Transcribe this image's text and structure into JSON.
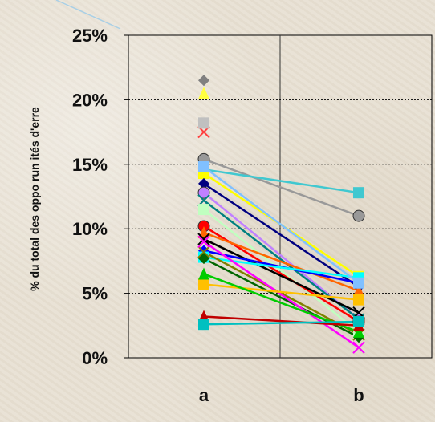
{
  "chart_data": {
    "type": "line",
    "title": "",
    "xlabel": "",
    "ylabel": "% du total des oppo run ités d'erre",
    "categories": [
      "a",
      "b"
    ],
    "ylim": [
      0,
      0.25
    ],
    "yticks": [
      "0%",
      "5%",
      "10%",
      "15%",
      "20%",
      "25%"
    ],
    "ytick_values": [
      0,
      0.05,
      0.1,
      0.15,
      0.2,
      0.25
    ],
    "grid": true,
    "legend": "none",
    "series": [
      {
        "color": "#999999",
        "marker": "circle",
        "values": [
          0.154,
          0.11
        ]
      },
      {
        "color": "#40c8d0",
        "marker": "square",
        "values": [
          0.146,
          0.128
        ]
      },
      {
        "color": "#ffff00",
        "marker": "square",
        "values": [
          0.143,
          0.063
        ]
      },
      {
        "color": "#000080",
        "marker": "diamond",
        "values": [
          0.135,
          0.055
        ]
      },
      {
        "color": "#c080ff",
        "marker": "circle",
        "values": [
          0.128,
          0.03
        ]
      },
      {
        "color": "#008080",
        "marker": "x",
        "values": [
          0.122,
          0.03
        ]
      },
      {
        "color": "#c0ffc0",
        "marker": "square",
        "values": [
          0.115,
          0.02
        ]
      },
      {
        "color": "#ff0000",
        "marker": "circle",
        "values": [
          0.102,
          0.028
        ]
      },
      {
        "color": "#ff6600",
        "marker": "triangle",
        "values": [
          0.097,
          0.052
        ]
      },
      {
        "color": "#000000",
        "marker": "x",
        "values": [
          0.092,
          0.035
        ]
      },
      {
        "color": "#0000ff",
        "marker": "diamond",
        "values": [
          0.083,
          0.058
        ]
      },
      {
        "color": "#00ffff",
        "marker": "square",
        "values": [
          0.078,
          0.062
        ]
      },
      {
        "color": "#808000",
        "marker": "x",
        "values": [
          0.082,
          0.018
        ]
      },
      {
        "color": "#006600",
        "marker": "diamond",
        "values": [
          0.077,
          0.016
        ]
      },
      {
        "color": "#ff00ff",
        "marker": "x",
        "values": [
          0.09,
          0.008
        ]
      },
      {
        "color": "#ffc000",
        "marker": "square",
        "values": [
          0.057,
          0.045
        ]
      },
      {
        "color": "#00cc00",
        "marker": "triangle",
        "values": [
          0.065,
          0.02
        ]
      },
      {
        "color": "#c00000",
        "marker": "triangle",
        "values": [
          0.032,
          0.025
        ]
      },
      {
        "color": "#00c0c0",
        "marker": "square",
        "values": [
          0.026,
          0.028
        ]
      },
      {
        "color": "#80c0ff",
        "marker": "square",
        "values": [
          0.148,
          0.058
        ]
      },
      {
        "color": "#ffff40",
        "marker": "triangle",
        "values": [
          0.205,
          null
        ]
      },
      {
        "color": "#ff4040",
        "marker": "x",
        "values": [
          0.175,
          null
        ]
      },
      {
        "color": "#808080",
        "marker": "diamond",
        "values": [
          0.215,
          null
        ]
      },
      {
        "color": "#c0c0c0",
        "marker": "square",
        "values": [
          0.182,
          null
        ]
      }
    ]
  }
}
